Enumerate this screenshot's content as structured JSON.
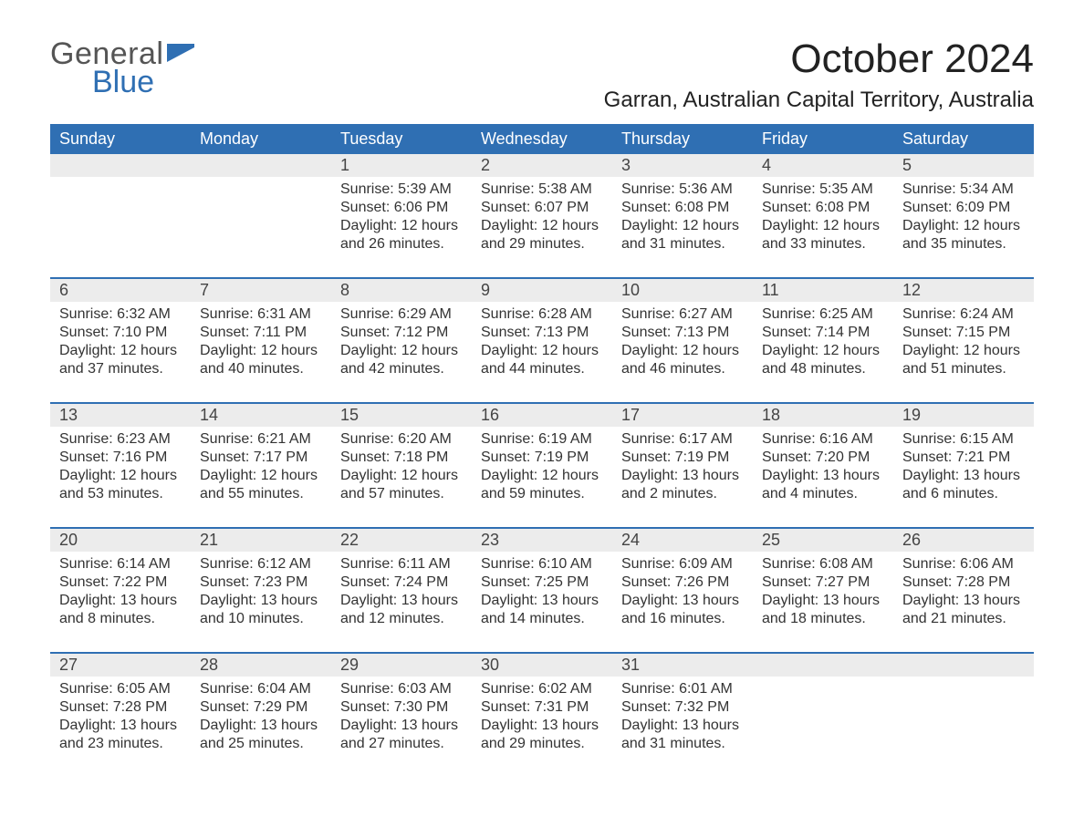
{
  "logo": {
    "text1": "General",
    "text2": "Blue",
    "brand_color": "#2f6fb3"
  },
  "title": "October 2024",
  "location": "Garran, Australian Capital Territory, Australia",
  "colors": {
    "header_bg": "#2f6fb3",
    "header_text": "#ffffff",
    "daynum_bg": "#ececec",
    "border": "#2f6fb3",
    "body_text": "#333333",
    "background": "#ffffff"
  },
  "typography": {
    "title_fontsize": 44,
    "location_fontsize": 24,
    "header_fontsize": 18,
    "daynum_fontsize": 18,
    "detail_fontsize": 16
  },
  "layout": {
    "columns": 7
  },
  "day_headers": [
    "Sunday",
    "Monday",
    "Tuesday",
    "Wednesday",
    "Thursday",
    "Friday",
    "Saturday"
  ],
  "weeks": [
    {
      "days": [
        {
          "num": "",
          "sunrise": "",
          "sunset": "",
          "daylight": ""
        },
        {
          "num": "",
          "sunrise": "",
          "sunset": "",
          "daylight": ""
        },
        {
          "num": "1",
          "sunrise": "Sunrise: 5:39 AM",
          "sunset": "Sunset: 6:06 PM",
          "daylight": "Daylight: 12 hours and 26 minutes."
        },
        {
          "num": "2",
          "sunrise": "Sunrise: 5:38 AM",
          "sunset": "Sunset: 6:07 PM",
          "daylight": "Daylight: 12 hours and 29 minutes."
        },
        {
          "num": "3",
          "sunrise": "Sunrise: 5:36 AM",
          "sunset": "Sunset: 6:08 PM",
          "daylight": "Daylight: 12 hours and 31 minutes."
        },
        {
          "num": "4",
          "sunrise": "Sunrise: 5:35 AM",
          "sunset": "Sunset: 6:08 PM",
          "daylight": "Daylight: 12 hours and 33 minutes."
        },
        {
          "num": "5",
          "sunrise": "Sunrise: 5:34 AM",
          "sunset": "Sunset: 6:09 PM",
          "daylight": "Daylight: 12 hours and 35 minutes."
        }
      ]
    },
    {
      "days": [
        {
          "num": "6",
          "sunrise": "Sunrise: 6:32 AM",
          "sunset": "Sunset: 7:10 PM",
          "daylight": "Daylight: 12 hours and 37 minutes."
        },
        {
          "num": "7",
          "sunrise": "Sunrise: 6:31 AM",
          "sunset": "Sunset: 7:11 PM",
          "daylight": "Daylight: 12 hours and 40 minutes."
        },
        {
          "num": "8",
          "sunrise": "Sunrise: 6:29 AM",
          "sunset": "Sunset: 7:12 PM",
          "daylight": "Daylight: 12 hours and 42 minutes."
        },
        {
          "num": "9",
          "sunrise": "Sunrise: 6:28 AM",
          "sunset": "Sunset: 7:13 PM",
          "daylight": "Daylight: 12 hours and 44 minutes."
        },
        {
          "num": "10",
          "sunrise": "Sunrise: 6:27 AM",
          "sunset": "Sunset: 7:13 PM",
          "daylight": "Daylight: 12 hours and 46 minutes."
        },
        {
          "num": "11",
          "sunrise": "Sunrise: 6:25 AM",
          "sunset": "Sunset: 7:14 PM",
          "daylight": "Daylight: 12 hours and 48 minutes."
        },
        {
          "num": "12",
          "sunrise": "Sunrise: 6:24 AM",
          "sunset": "Sunset: 7:15 PM",
          "daylight": "Daylight: 12 hours and 51 minutes."
        }
      ]
    },
    {
      "days": [
        {
          "num": "13",
          "sunrise": "Sunrise: 6:23 AM",
          "sunset": "Sunset: 7:16 PM",
          "daylight": "Daylight: 12 hours and 53 minutes."
        },
        {
          "num": "14",
          "sunrise": "Sunrise: 6:21 AM",
          "sunset": "Sunset: 7:17 PM",
          "daylight": "Daylight: 12 hours and 55 minutes."
        },
        {
          "num": "15",
          "sunrise": "Sunrise: 6:20 AM",
          "sunset": "Sunset: 7:18 PM",
          "daylight": "Daylight: 12 hours and 57 minutes."
        },
        {
          "num": "16",
          "sunrise": "Sunrise: 6:19 AM",
          "sunset": "Sunset: 7:19 PM",
          "daylight": "Daylight: 12 hours and 59 minutes."
        },
        {
          "num": "17",
          "sunrise": "Sunrise: 6:17 AM",
          "sunset": "Sunset: 7:19 PM",
          "daylight": "Daylight: 13 hours and 2 minutes."
        },
        {
          "num": "18",
          "sunrise": "Sunrise: 6:16 AM",
          "sunset": "Sunset: 7:20 PM",
          "daylight": "Daylight: 13 hours and 4 minutes."
        },
        {
          "num": "19",
          "sunrise": "Sunrise: 6:15 AM",
          "sunset": "Sunset: 7:21 PM",
          "daylight": "Daylight: 13 hours and 6 minutes."
        }
      ]
    },
    {
      "days": [
        {
          "num": "20",
          "sunrise": "Sunrise: 6:14 AM",
          "sunset": "Sunset: 7:22 PM",
          "daylight": "Daylight: 13 hours and 8 minutes."
        },
        {
          "num": "21",
          "sunrise": "Sunrise: 6:12 AM",
          "sunset": "Sunset: 7:23 PM",
          "daylight": "Daylight: 13 hours and 10 minutes."
        },
        {
          "num": "22",
          "sunrise": "Sunrise: 6:11 AM",
          "sunset": "Sunset: 7:24 PM",
          "daylight": "Daylight: 13 hours and 12 minutes."
        },
        {
          "num": "23",
          "sunrise": "Sunrise: 6:10 AM",
          "sunset": "Sunset: 7:25 PM",
          "daylight": "Daylight: 13 hours and 14 minutes."
        },
        {
          "num": "24",
          "sunrise": "Sunrise: 6:09 AM",
          "sunset": "Sunset: 7:26 PM",
          "daylight": "Daylight: 13 hours and 16 minutes."
        },
        {
          "num": "25",
          "sunrise": "Sunrise: 6:08 AM",
          "sunset": "Sunset: 7:27 PM",
          "daylight": "Daylight: 13 hours and 18 minutes."
        },
        {
          "num": "26",
          "sunrise": "Sunrise: 6:06 AM",
          "sunset": "Sunset: 7:28 PM",
          "daylight": "Daylight: 13 hours and 21 minutes."
        }
      ]
    },
    {
      "days": [
        {
          "num": "27",
          "sunrise": "Sunrise: 6:05 AM",
          "sunset": "Sunset: 7:28 PM",
          "daylight": "Daylight: 13 hours and 23 minutes."
        },
        {
          "num": "28",
          "sunrise": "Sunrise: 6:04 AM",
          "sunset": "Sunset: 7:29 PM",
          "daylight": "Daylight: 13 hours and 25 minutes."
        },
        {
          "num": "29",
          "sunrise": "Sunrise: 6:03 AM",
          "sunset": "Sunset: 7:30 PM",
          "daylight": "Daylight: 13 hours and 27 minutes."
        },
        {
          "num": "30",
          "sunrise": "Sunrise: 6:02 AM",
          "sunset": "Sunset: 7:31 PM",
          "daylight": "Daylight: 13 hours and 29 minutes."
        },
        {
          "num": "31",
          "sunrise": "Sunrise: 6:01 AM",
          "sunset": "Sunset: 7:32 PM",
          "daylight": "Daylight: 13 hours and 31 minutes."
        },
        {
          "num": "",
          "sunrise": "",
          "sunset": "",
          "daylight": ""
        },
        {
          "num": "",
          "sunrise": "",
          "sunset": "",
          "daylight": ""
        }
      ]
    }
  ]
}
